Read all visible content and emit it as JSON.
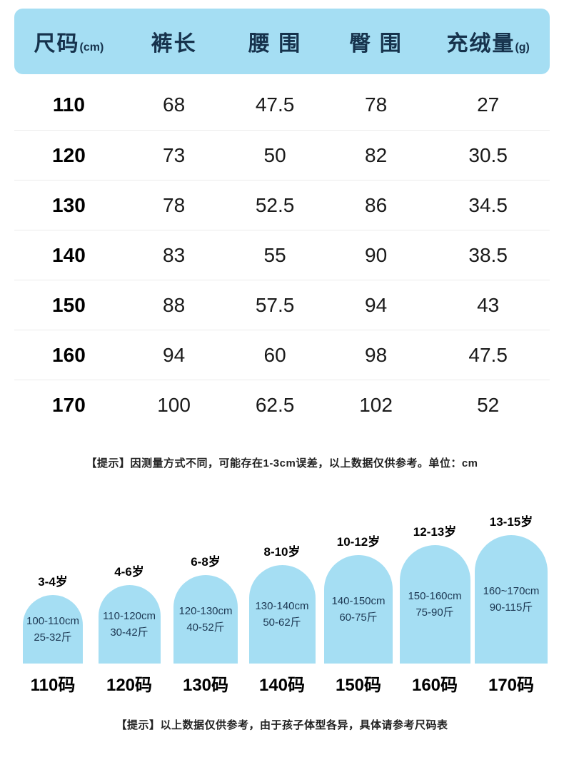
{
  "colors": {
    "header_bg": "#A5DEF3",
    "arch_bg": "#A5DEF3",
    "header_text": "#16324C"
  },
  "table": {
    "headers": [
      {
        "label": "尺码",
        "unit": "(cm)"
      },
      {
        "label": "裤长",
        "unit": ""
      },
      {
        "label": "腰 围",
        "unit": ""
      },
      {
        "label": "臀 围",
        "unit": ""
      },
      {
        "label": "充绒量",
        "unit": "(g)"
      }
    ],
    "rows": [
      [
        "110",
        "68",
        "47.5",
        "78",
        "27"
      ],
      [
        "120",
        "73",
        "50",
        "82",
        "30.5"
      ],
      [
        "130",
        "78",
        "52.5",
        "86",
        "34.5"
      ],
      [
        "140",
        "83",
        "55",
        "90",
        "38.5"
      ],
      [
        "150",
        "88",
        "57.5",
        "94",
        "43"
      ],
      [
        "160",
        "94",
        "60",
        "98",
        "47.5"
      ],
      [
        "170",
        "100",
        "62.5",
        "102",
        "52"
      ]
    ]
  },
  "notes": {
    "measure": "【提示】因测量方式不同，可能存在1-3cm误差，以上数据仅供参考。单位：cm",
    "reference": "【提示】以上数据仅供参考，由于孩子体型各异，具体请参考尺码表"
  },
  "guide": {
    "items": [
      {
        "age": "3-4岁",
        "height_range": "100-110cm",
        "weight_range": "25-32斤",
        "size": "110码"
      },
      {
        "age": "4-6岁",
        "height_range": "110-120cm",
        "weight_range": "30-42斤",
        "size": "120码"
      },
      {
        "age": "6-8岁",
        "height_range": "120-130cm",
        "weight_range": "40-52斤",
        "size": "130码"
      },
      {
        "age": "8-10岁",
        "height_range": "130-140cm",
        "weight_range": "50-62斤",
        "size": "140码"
      },
      {
        "age": "10-12岁",
        "height_range": "140-150cm",
        "weight_range": "60-75斤",
        "size": "150码"
      },
      {
        "age": "12-13岁",
        "height_range": "150-160cm",
        "weight_range": "75-90斤",
        "size": "160码"
      },
      {
        "age": "13-15岁",
        "height_range": "160~170cm",
        "weight_range": "90-115斤",
        "size": "170码"
      }
    ]
  },
  "chart_data": [
    {
      "type": "table",
      "title": "尺码表",
      "columns": [
        "尺码(cm)",
        "裤长",
        "腰围",
        "臀围",
        "充绒量(g)"
      ],
      "rows": [
        [
          "110",
          "68",
          "47.5",
          "78",
          "27"
        ],
        [
          "120",
          "73",
          "50",
          "82",
          "30.5"
        ],
        [
          "130",
          "78",
          "52.5",
          "86",
          "34.5"
        ],
        [
          "140",
          "83",
          "55",
          "90",
          "38.5"
        ],
        [
          "150",
          "88",
          "57.5",
          "94",
          "43"
        ],
        [
          "160",
          "94",
          "60",
          "98",
          "47.5"
        ],
        [
          "170",
          "100",
          "62.5",
          "102",
          "52"
        ]
      ]
    },
    {
      "type": "bar",
      "categories": [
        "110码",
        "120码",
        "130码",
        "140码",
        "150码",
        "160码",
        "170码"
      ],
      "values": [
        110,
        120,
        130,
        140,
        150,
        160,
        170
      ],
      "annotations": {
        "ages": [
          "3-4岁",
          "4-6岁",
          "6-8岁",
          "8-10岁",
          "10-12岁",
          "12-13岁",
          "13-15岁"
        ],
        "height_ranges": [
          "100-110cm",
          "110-120cm",
          "120-130cm",
          "130-140cm",
          "140-150cm",
          "150-160cm",
          "160~170cm"
        ],
        "weight_ranges": [
          "25-32斤",
          "30-42斤",
          "40-52斤",
          "50-62斤",
          "60-75斤",
          "75-90斤",
          "90-115斤"
        ]
      },
      "legend_position": "none",
      "grid": false
    }
  ]
}
